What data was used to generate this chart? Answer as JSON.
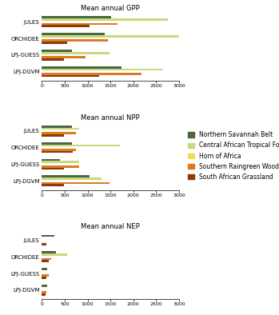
{
  "models": [
    "JULES",
    "ORCHIDEE",
    "LPJ-GUESS",
    "LPJ-DGVM"
  ],
  "regions": [
    "Northern Savannah Belt",
    "Central African Tropical Forest",
    "Horn of Africa",
    "Southern Raingreen Woodland",
    "South African Grassland"
  ],
  "colors": [
    "#4a6741",
    "#c8d87a",
    "#e8e050",
    "#e07820",
    "#8b3a0a"
  ],
  "GPP": {
    "JULES": [
      1520,
      2750,
      0,
      1650,
      1050
    ],
    "ORCHIDEE": [
      1380,
      3100,
      0,
      1450,
      550
    ],
    "LPJ-GUESS": [
      650,
      1480,
      0,
      950,
      480
    ],
    "LPJ-DGVM": [
      1750,
      2650,
      0,
      2180,
      1250
    ]
  },
  "NPP": {
    "JULES": [
      650,
      820,
      0,
      750,
      490
    ],
    "ORCHIDEE": [
      650,
      1700,
      0,
      750,
      680
    ],
    "LPJ-GUESS": [
      400,
      820,
      0,
      820,
      490
    ],
    "LPJ-DGVM": [
      1050,
      1300,
      0,
      1480,
      490
    ]
  },
  "NEP": {
    "JULES": [
      280,
      0,
      0,
      0,
      100
    ],
    "ORCHIDEE": [
      300,
      550,
      0,
      200,
      150
    ],
    "LPJ-GUESS": [
      120,
      0,
      0,
      150,
      100
    ],
    "LPJ-DGVM": [
      120,
      0,
      0,
      100,
      80
    ]
  },
  "titles": [
    "Mean annual GPP",
    "Mean annual NPP",
    "Mean annual NEP"
  ],
  "xlim": [
    0,
    3000
  ],
  "xticks": [
    0,
    500,
    1000,
    1500,
    2000,
    2500,
    3000
  ]
}
